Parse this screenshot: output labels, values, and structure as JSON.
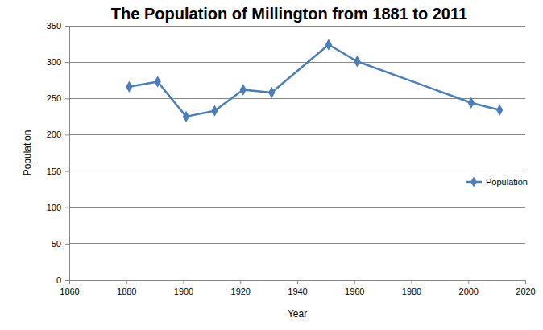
{
  "chart_data": {
    "type": "line",
    "title": "The Population of Millington from 1881 to 2011",
    "x_label": "Year",
    "y_label": "Population",
    "x": [
      1881,
      1891,
      1901,
      1911,
      1921,
      1931,
      1951,
      1961,
      2001,
      2011
    ],
    "series": [
      {
        "name": "Population",
        "color": "#4a7ebb",
        "marker": "diamond",
        "line_style": "solid",
        "values": [
          266,
          273,
          225,
          233,
          262,
          258,
          324,
          301,
          244,
          234
        ]
      }
    ],
    "xlim": [
      1860,
      2020
    ],
    "xticks": [
      1860,
      1880,
      1900,
      1920,
      1940,
      1960,
      1980,
      2000,
      2020
    ],
    "ylim": [
      0,
      350
    ],
    "yticks": [
      0,
      50,
      100,
      150,
      200,
      250,
      300,
      350
    ],
    "grid": true,
    "legend": "right"
  }
}
